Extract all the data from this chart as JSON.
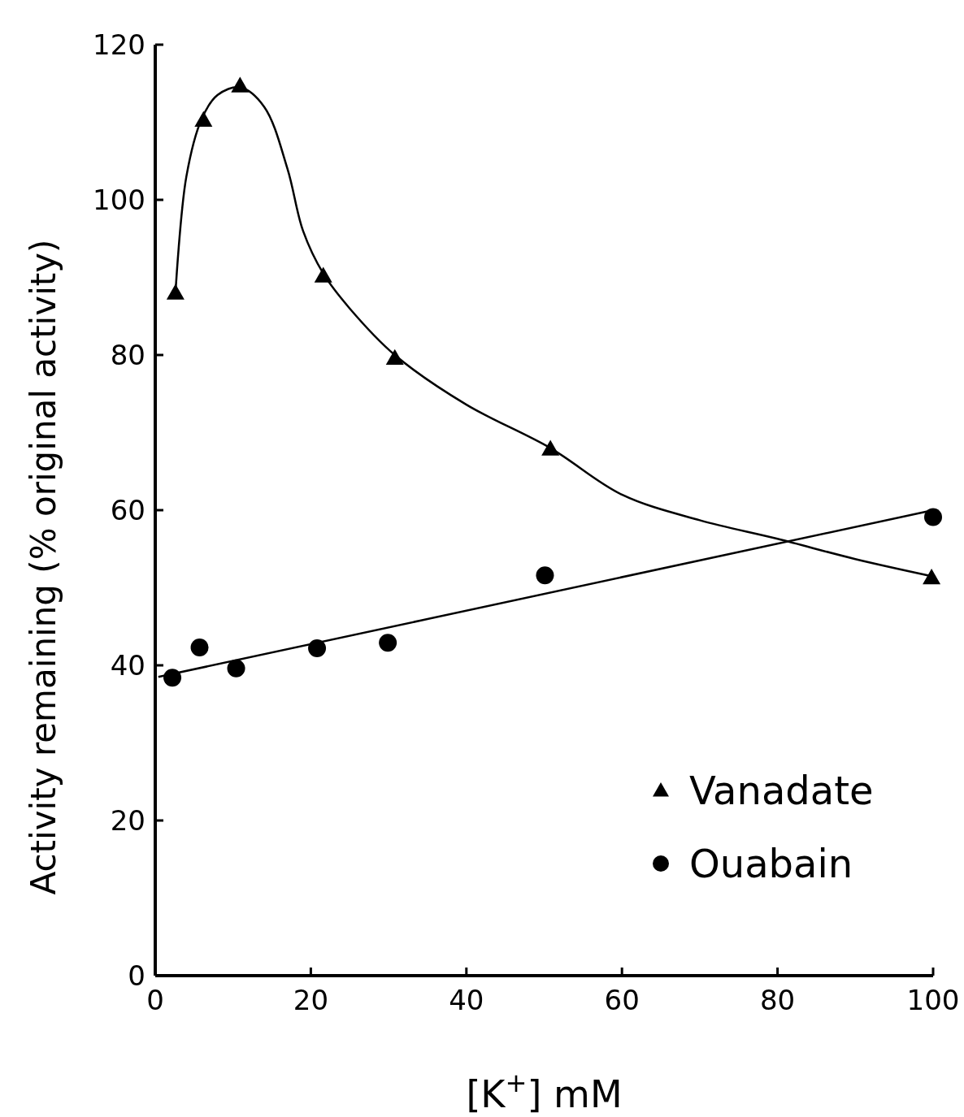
{
  "chart_data": {
    "type": "scatter",
    "xlabel": "[K$^{+}$] mM",
    "ylabel": "Activity remaining (% original activity)",
    "xlim": [
      0,
      100
    ],
    "ylim": [
      0,
      120
    ],
    "xticks": [
      0,
      20,
      40,
      60,
      80,
      100
    ],
    "yticks": [
      0,
      20,
      40,
      60,
      80,
      100,
      120
    ],
    "legend": "bottom right",
    "grid": false,
    "series": [
      {
        "name": "Vanadate",
        "marker": "triangle",
        "color": "#000000",
        "x": [
          2.6,
          6.2,
          10.9,
          21.6,
          30.8,
          50.8,
          99.8
        ],
        "values": [
          88,
          110.3,
          114.7,
          90.2,
          79.6,
          67.9,
          51.3
        ]
      },
      {
        "name": "Ouabain",
        "marker": "circle",
        "color": "#000000",
        "x": [
          2.2,
          5.7,
          10.4,
          20.8,
          29.9,
          50.1,
          100
        ],
        "values": [
          38.4,
          42.3,
          39.6,
          42.2,
          42.9,
          51.6,
          59.1
        ]
      },
      {
        "type": "line",
        "marker": "none",
        "color": "#000000",
        "x": [
          2.6,
          4,
          6,
          8,
          10.9,
          14,
          17,
          19,
          21.6,
          25,
          30.8,
          40,
          50.8,
          60,
          70,
          80,
          90,
          99.8
        ],
        "values": [
          88,
          103,
          110.5,
          113.5,
          114.5,
          112,
          104,
          96,
          90.5,
          86,
          80,
          73.6,
          68,
          62,
          58.7,
          56.3,
          53.7,
          51.5
        ]
      },
      {
        "type": "line",
        "marker": "none",
        "color": "#000000",
        "x": [
          0.4,
          100
        ],
        "values": [
          38.5,
          60
        ]
      }
    ]
  }
}
